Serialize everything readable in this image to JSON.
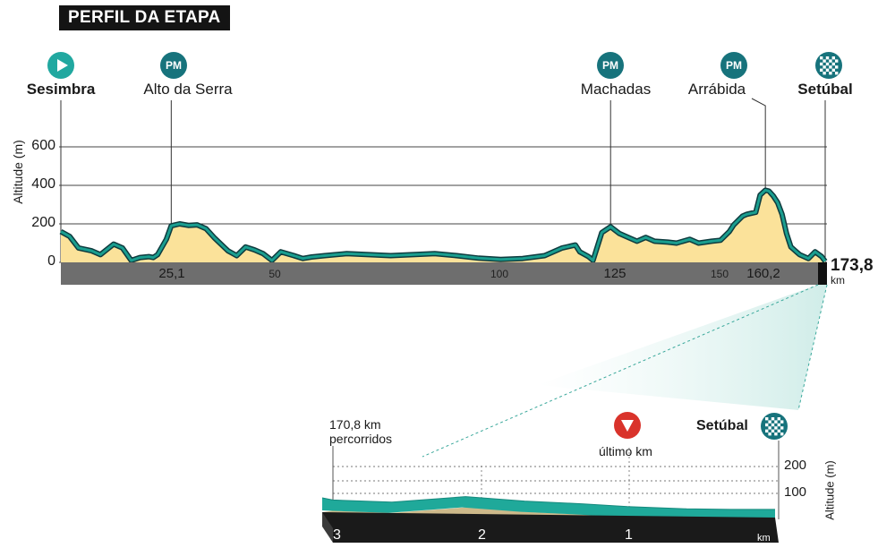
{
  "title": "PERFIL DA ETAPA",
  "y_axis_label": "Altitude (m)",
  "y_ticks": [
    "600",
    "400",
    "200",
    "0"
  ],
  "x_ticks_major": [
    "25,1",
    "125",
    "160,2"
  ],
  "x_ticks_minor": [
    "50",
    "100",
    "150"
  ],
  "total_distance": "173,8",
  "total_unit": "km",
  "pm_label": "PM",
  "points": [
    {
      "name": "Sesimbra",
      "icon": "start-icon",
      "km": 0
    },
    {
      "name": "Alto da Serra",
      "icon": "pm-icon",
      "km": 25.1
    },
    {
      "name": "Machadas",
      "icon": "pm-icon",
      "km": 125
    },
    {
      "name": "Arrábida",
      "icon": "pm-icon",
      "km": 160.2
    },
    {
      "name": "Setúbal",
      "icon": "finish-icon",
      "km": 173.8
    }
  ],
  "chart_data": {
    "type": "area",
    "title": "PERFIL DA ETAPA",
    "xlabel": "",
    "ylabel": "Altitude (m)",
    "xlim": [
      0,
      173.8
    ],
    "ylim": [
      0,
      600
    ],
    "x": [
      0,
      2,
      4,
      7,
      9,
      12,
      14,
      16,
      18,
      20,
      21,
      22,
      24,
      25.1,
      27,
      29,
      31,
      33,
      35,
      38,
      40,
      42,
      44,
      46,
      48,
      50,
      53,
      55,
      57,
      60,
      65,
      70,
      75,
      80,
      85,
      90,
      95,
      100,
      105,
      110,
      114,
      117,
      118,
      120,
      121,
      123,
      125,
      127,
      129,
      131,
      133,
      135,
      138,
      140,
      143,
      145,
      148,
      150,
      152,
      153,
      155,
      156,
      157,
      158,
      159,
      160.2,
      161,
      162,
      163,
      164,
      165,
      166,
      168,
      170,
      171.5,
      173,
      173.8
    ],
    "series": [
      {
        "values": [
          160,
          135,
          75,
          60,
          40,
          95,
          75,
          10,
          25,
          30,
          25,
          40,
          120,
          190,
          200,
          192,
          195,
          175,
          125,
          60,
          35,
          80,
          65,
          45,
          10,
          55,
          35,
          20,
          28,
          35,
          45,
          40,
          35,
          40,
          45,
          35,
          22,
          15,
          20,
          35,
          75,
          90,
          55,
          30,
          10,
          155,
          185,
          150,
          130,
          110,
          130,
          110,
          105,
          100,
          120,
          100,
          110,
          115,
          160,
          195,
          240,
          250,
          255,
          260,
          350,
          375,
          370,
          345,
          310,
          250,
          150,
          80,
          40,
          20,
          55,
          30,
          5
        ]
      }
    ],
    "x_tick_labels": [
      "25,1",
      "50",
      "100",
      "125",
      "150",
      "160,2"
    ],
    "total_km": "173,8 km"
  },
  "zoom": {
    "start_label_line1": "170,8 km",
    "start_label_line2": "percorridos",
    "last_km_label": "último km",
    "finish_label": "Setúbal",
    "y_axis_label": "Altitude (m)",
    "y_ticks": [
      "200",
      "100"
    ],
    "x_ticks": [
      "3",
      "2",
      "1"
    ],
    "x_unit": "km",
    "chart_data": {
      "type": "area",
      "xlabel": "km",
      "ylabel": "Altitude (m)",
      "xlim": [
        3,
        0
      ],
      "ylim": [
        0,
        250
      ],
      "x": [
        3,
        2.6,
        2.3,
        2.1,
        2.0,
        1.7,
        1.3,
        1.0,
        0.6,
        0.3,
        0.05,
        0
      ],
      "series": [
        {
          "values": [
            22,
            18,
            24,
            28,
            26,
            20,
            15,
            10,
            6,
            5,
            5,
            5
          ]
        }
      ]
    }
  },
  "colors": {
    "accent": "#17737c",
    "profile_line": "#1a9e8f",
    "profile_fill": "#fbe29a",
    "axis_band": "#6e6e6e",
    "pm_icon": "#17737c",
    "start_icon": "#21a8a0",
    "last_km_icon": "#d9332b"
  }
}
